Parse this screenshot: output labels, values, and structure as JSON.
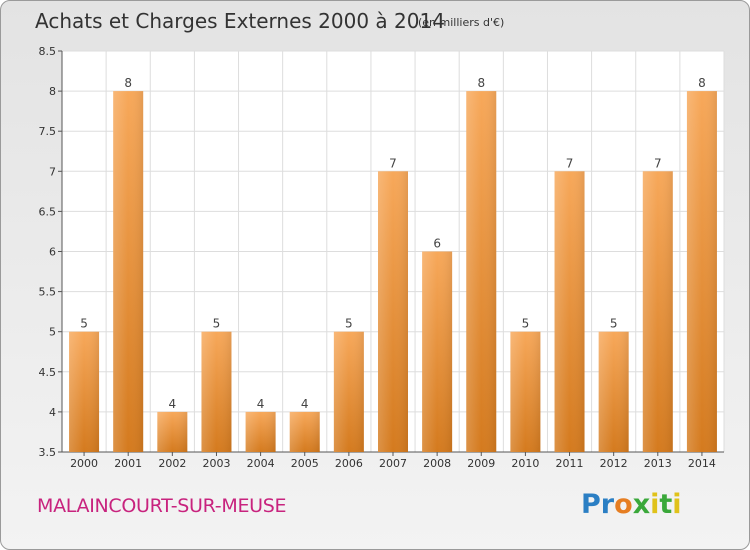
{
  "header": {
    "title": "Achats et Charges Externes 2000 à 2014",
    "unit": "(en milliers d'€)"
  },
  "footer": {
    "commune": "MALAINCOURT-SUR-MEUSE",
    "logo": "Proxiti"
  },
  "colors": {
    "bar_light": "#f7a85a",
    "bar_dark": "#d47a1e",
    "title_pink": "#c8237e"
  },
  "chart_data": {
    "type": "bar",
    "title": "Achats et Charges Externes 2000 à 2014",
    "categories": [
      "2000",
      "2001",
      "2002",
      "2003",
      "2004",
      "2005",
      "2006",
      "2007",
      "2008",
      "2009",
      "2010",
      "2011",
      "2012",
      "2013",
      "2014"
    ],
    "values": [
      5,
      8,
      4,
      5,
      4,
      4,
      5,
      7,
      6,
      8,
      5,
      7,
      5,
      7,
      8
    ],
    "ylim": [
      3.5,
      8.5
    ],
    "yticks": [
      "3.5",
      "4",
      "4.5",
      "5",
      "5.5",
      "6",
      "6.5",
      "7",
      "7.5",
      "8",
      "8.5"
    ],
    "grid": true
  }
}
